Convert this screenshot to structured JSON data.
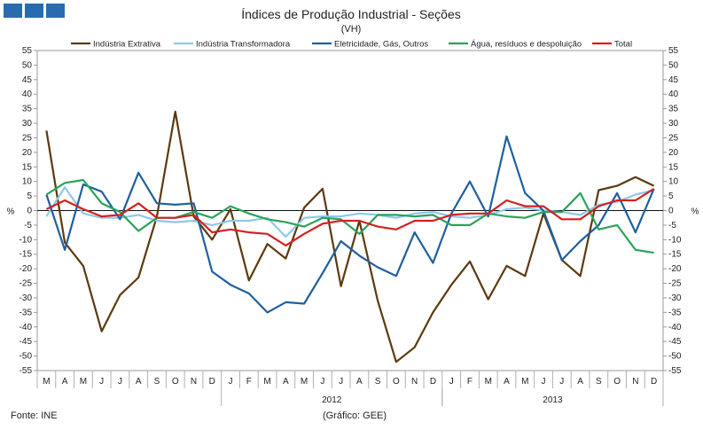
{
  "page": {
    "title": "Índices de Produção Industrial - Seções",
    "subtitle": "(VH)",
    "source": "Fonte: INE",
    "credit": "(Gráfico: GEE)"
  },
  "chart_data": {
    "type": "line",
    "title": "Índices de Produção Industrial - Seções",
    "subtitle": "(VH)",
    "ylabel": "%",
    "ylim": [
      -55,
      55
    ],
    "y_ticks": [
      55,
      50,
      45,
      40,
      35,
      30,
      25,
      20,
      15,
      10,
      5,
      0,
      -5,
      -10,
      -15,
      -20,
      -25,
      -30,
      -35,
      -40,
      -45,
      -50,
      -55
    ],
    "grid": false,
    "legend_position": "top",
    "x": [
      "M",
      "A",
      "M",
      "J",
      "J",
      "A",
      "S",
      "O",
      "N",
      "D",
      "J",
      "F",
      "M",
      "A",
      "M",
      "J",
      "J",
      "A",
      "S",
      "O",
      "N",
      "D",
      "J",
      "F",
      "M",
      "A",
      "M",
      "J",
      "J",
      "A",
      "S",
      "O",
      "N",
      "D"
    ],
    "year_labels": [
      {
        "label": "2012",
        "start_index": 10,
        "end_index": 21
      },
      {
        "label": "2013",
        "start_index": 22,
        "end_index": 33
      }
    ],
    "series": [
      {
        "name": "Indústria Extrativa",
        "color": "#5c3a0e",
        "values": [
          27.5,
          -11,
          -19,
          -41.5,
          -29,
          -23,
          -2,
          34,
          -2,
          -10,
          0.5,
          -24,
          -11.5,
          -16.5,
          1,
          7.5,
          -26,
          -3.5,
          -31,
          -52,
          -47,
          -35,
          -25.5,
          -17.5,
          -30.5,
          -19,
          -22.5,
          -1,
          -17,
          -22.5,
          7,
          8.5,
          11.5,
          8.5
        ]
      },
      {
        "name": "Indústria Transformadora",
        "color": "#8ec8ea",
        "values": [
          -2,
          8,
          -1,
          -2.5,
          -2.5,
          -1.5,
          -3.5,
          -4,
          -3.5,
          -5,
          -3.5,
          -3.5,
          -2.5,
          -9,
          -2.5,
          -2,
          -2,
          -1,
          -1.5,
          -2.5,
          -1,
          -0.5,
          -2,
          -2.5,
          -1.5,
          0.5,
          1,
          0,
          -0.5,
          -1.5,
          2,
          3,
          5.5,
          7
        ]
      },
      {
        "name": "Eletricidade, Gás, Outros",
        "color": "#1f5f9e",
        "values": [
          5.5,
          -13.5,
          9,
          6.5,
          -3,
          13,
          2.5,
          2,
          2.5,
          -21,
          -25.5,
          -28.5,
          -35,
          -31.5,
          -32,
          -21.5,
          -10.5,
          -15.5,
          -19.5,
          -22.5,
          -7.5,
          -18,
          -1,
          10,
          -2,
          25.5,
          6,
          0,
          -17,
          -10.5,
          -5,
          6,
          -7.5,
          7.5
        ]
      },
      {
        "name": "Água, resíduos e despoluição",
        "color": "#2aa35a",
        "values": [
          5.5,
          9.5,
          10.5,
          2.5,
          -0.5,
          -7,
          -2.5,
          -2.5,
          -0.5,
          -2.5,
          1.5,
          -1,
          -3,
          -4,
          -5.5,
          -2.5,
          -3,
          -8,
          -1.5,
          -1.5,
          -2,
          -1.5,
          -5,
          -5,
          -1,
          -2,
          -2.5,
          -0.5,
          -0.5,
          6,
          -6.5,
          -5,
          -13.5,
          -14.5
        ]
      },
      {
        "name": "Total",
        "color": "#d42020",
        "values": [
          0.5,
          3.5,
          0.5,
          -2,
          -1.5,
          2.5,
          -2.5,
          -2.5,
          -1.5,
          -7.5,
          -6.5,
          -7.5,
          -8,
          -12,
          -8,
          -4.5,
          -3.5,
          -3.5,
          -5.5,
          -6.5,
          -3.5,
          -3.5,
          -1.5,
          -1,
          -1,
          3.5,
          1.5,
          1.5,
          -3,
          -3,
          1.5,
          3.5,
          3.5,
          7.5
        ]
      }
    ]
  }
}
